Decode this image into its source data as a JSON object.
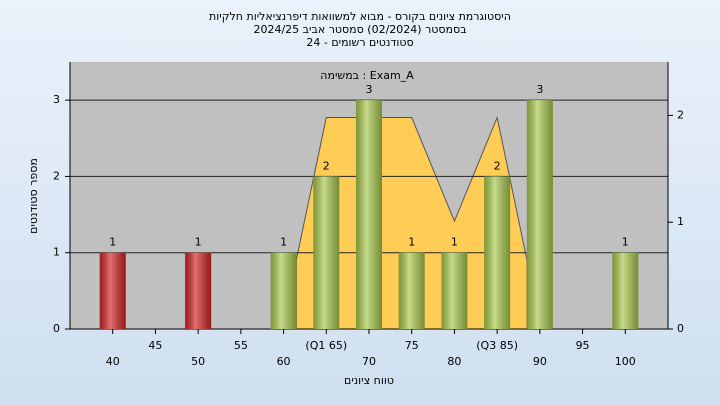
{
  "chart_data": {
    "type": "bar",
    "title": [
      "היסטוגרמת ציונים בקורס - מבוא למשוואות דיפרנציאליות חלקיות",
      "בסמסטר (02/2024)  סמסטר אביב 2024/25",
      "סטודנטים רשומים - 24"
    ],
    "annotation": "במשימה : Exam_A",
    "x_label": "טווח ציונים",
    "y_label": "מספר סטודנטים",
    "x": [
      40,
      50,
      60,
      65,
      70,
      75,
      80,
      85,
      90,
      100
    ],
    "values": [
      1,
      1,
      1,
      2,
      3,
      1,
      1,
      2,
      3,
      1
    ],
    "colors": [
      "#d42424",
      "#d42424",
      "#a9c94c",
      "#a9c94c",
      "#a9c94c",
      "#a9c94c",
      "#a9c94c",
      "#a9c94c",
      "#a9c94c",
      "#a9c94c"
    ],
    "xlim": [
      35,
      105
    ],
    "xticks": [
      40,
      45,
      50,
      55,
      60,
      {
        "value": 65,
        "label": "(Q1 65)"
      },
      70,
      75,
      80,
      {
        "value": 85,
        "label": "(Q3 85)"
      },
      90,
      95,
      100
    ],
    "ylim": [
      0,
      3.5
    ],
    "yticks": [
      0,
      1,
      2,
      3
    ],
    "y2lim": [
      0,
      2.5
    ],
    "y2ticks": [
      0,
      1,
      2
    ],
    "area": {
      "axis": "y2",
      "color": "#ffcc55",
      "x": [
        61.5,
        65,
        75,
        80,
        85,
        88.5
      ],
      "values": [
        0.65,
        1.98,
        1.98,
        1.01,
        1.98,
        0.64
      ]
    },
    "grid": true
  }
}
